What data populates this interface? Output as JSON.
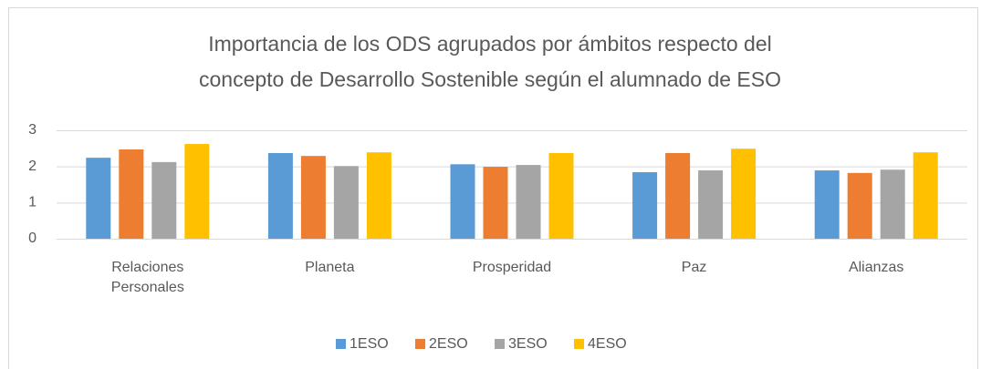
{
  "chart_data": {
    "type": "bar",
    "title": [
      "Importancia de los ODS agrupados por ámbitos respecto del",
      "concepto de Desarrollo Sostenible según el alumnado de ESO"
    ],
    "categories": [
      "Relaciones Personales",
      "Planeta",
      "Prosperidad",
      "Paz",
      "Alianzas"
    ],
    "series": [
      {
        "name": "1ESO",
        "color": "#5b9bd5",
        "values": [
          2.24,
          2.37,
          2.06,
          1.84,
          1.89
        ]
      },
      {
        "name": "2ESO",
        "color": "#ed7d31",
        "values": [
          2.47,
          2.29,
          1.99,
          2.37,
          1.82
        ]
      },
      {
        "name": "3ESO",
        "color": "#a5a5a5",
        "values": [
          2.12,
          2.01,
          2.04,
          1.89,
          1.91
        ]
      },
      {
        "name": "4ESO",
        "color": "#ffc000",
        "values": [
          2.62,
          2.39,
          2.37,
          2.49,
          2.39
        ]
      }
    ],
    "ylim": [
      0,
      3
    ],
    "yticks": [
      0,
      1,
      2,
      3
    ],
    "grid": true,
    "legend": "bottom"
  }
}
